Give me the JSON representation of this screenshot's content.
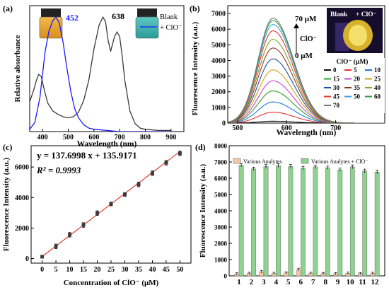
{
  "chart_data": [
    {
      "panel": "(a)",
      "type": "line",
      "xlabel": "Wavelength (nm)",
      "ylabel": "Relative absorbance",
      "xlim": [
        350,
        950
      ],
      "ylim": [
        0,
        1.1
      ],
      "x_ticks": [
        "400",
        "500",
        "600",
        "700",
        "800",
        "900"
      ],
      "peak_labels": [
        "452",
        "638"
      ],
      "series": [
        {
          "name": "Blank",
          "color": "#3a3a3a",
          "x": [
            350,
            365,
            375,
            385,
            395,
            405,
            420,
            440,
            460,
            480,
            500,
            520,
            540,
            560,
            580,
            600,
            620,
            635,
            645,
            655,
            665,
            680,
            690,
            700,
            710,
            720,
            740,
            760,
            780,
            800,
            850,
            900
          ],
          "y": [
            0.26,
            0.36,
            0.44,
            0.5,
            0.48,
            0.38,
            0.25,
            0.18,
            0.15,
            0.13,
            0.12,
            0.13,
            0.17,
            0.27,
            0.45,
            0.72,
            0.93,
            1.0,
            0.96,
            0.8,
            0.7,
            0.83,
            0.87,
            0.83,
            0.66,
            0.45,
            0.18,
            0.07,
            0.03,
            0.02,
            0.01,
            0.01
          ]
        },
        {
          "name": "+ ClO⁻",
          "color": "#1a1aff",
          "x": [
            350,
            370,
            390,
            410,
            425,
            440,
            452,
            465,
            480,
            495,
            510,
            525,
            540,
            560,
            580,
            600,
            650,
            700,
            800,
            900
          ],
          "y": [
            0.02,
            0.08,
            0.3,
            0.7,
            0.88,
            0.97,
            1.0,
            0.95,
            0.78,
            0.55,
            0.35,
            0.2,
            0.12,
            0.06,
            0.03,
            0.02,
            0.01,
            0.0,
            0.0,
            0.0
          ]
        }
      ],
      "legend_position": "top-right"
    },
    {
      "panel": "(b)",
      "type": "line",
      "xlabel": "Wavelength (nm)",
      "ylabel": "Fluorescence Intensity (a.u.)",
      "xlim": [
        480,
        800
      ],
      "ylim": [
        0,
        7500
      ],
      "x_ticks": [
        "500",
        "600",
        "700"
      ],
      "y_ticks": [
        "0",
        "1000",
        "2000",
        "3000",
        "4000",
        "5000",
        "6000",
        "7000"
      ],
      "peak_x": 572,
      "annotation_top": "70 μM",
      "annotation_mid": "ClO⁻",
      "annotation_bottom": "0 μM",
      "inset_labels": [
        "Blank",
        "+ ClO⁻"
      ],
      "legend_title": "ClO⁻ (μM)",
      "series": [
        {
          "name": "0",
          "color": "#111111",
          "peak": 120
        },
        {
          "name": "5",
          "color": "#e8312f",
          "peak": 700
        },
        {
          "name": "10",
          "color": "#1f77e4",
          "peak": 1350
        },
        {
          "name": "15",
          "color": "#2ca02c",
          "peak": 2050
        },
        {
          "name": "20",
          "color": "#cc44cc",
          "peak": 2700
        },
        {
          "name": "25",
          "color": "#d4a017",
          "peak": 3400
        },
        {
          "name": "30",
          "color": "#1f4fa0",
          "peak": 4100
        },
        {
          "name": "35",
          "color": "#8b3a2a",
          "peak": 4800
        },
        {
          "name": "40",
          "color": "#8aa020",
          "peak": 5350
        },
        {
          "name": "45",
          "color": "#e03a2a",
          "peak": 5900
        },
        {
          "name": "50",
          "color": "#3ea0e0",
          "peak": 6300
        },
        {
          "name": "60",
          "color": "#2e9e3e",
          "peak": 6550
        },
        {
          "name": "70",
          "color": "#777777",
          "peak": 6700
        }
      ],
      "legend_position": "right"
    },
    {
      "panel": "(c)",
      "type": "scatter",
      "xlabel": "Concentration of ClO⁻ (μM)",
      "ylabel": "Fluorescence Intensity (a.u.)",
      "xlim": [
        -4,
        54
      ],
      "ylim": [
        -300,
        7400
      ],
      "x_ticks": [
        "0",
        "5",
        "10",
        "15",
        "20",
        "25",
        "30",
        "35",
        "40",
        "45",
        "50"
      ],
      "y_ticks": [
        "0",
        "2000",
        "4000",
        "6000"
      ],
      "equation": "y = 137.6998 x + 135.9171",
      "r2_label": "R² = 0.9993",
      "x": [
        0,
        5,
        10,
        15,
        20,
        25,
        30,
        35,
        40,
        45,
        50
      ],
      "y": [
        120,
        800,
        1560,
        2200,
        2980,
        3580,
        4200,
        4860,
        5600,
        6280,
        6900
      ],
      "errors": [
        100,
        150,
        150,
        150,
        150,
        120,
        120,
        150,
        150,
        150,
        150
      ],
      "fit": {
        "slope": 137.6998,
        "intercept": 135.9171
      },
      "color": "#e33b2e"
    },
    {
      "panel": "(d)",
      "type": "bar",
      "ylabel": "Fluorescence Intensity (a.u.)",
      "ylim": [
        0,
        8000
      ],
      "y_ticks": [
        "0",
        "1000",
        "2000",
        "3000",
        "4000",
        "5000",
        "6000",
        "7000",
        "8000"
      ],
      "categories": [
        "1",
        "2",
        "3",
        "4",
        "5",
        "6",
        "7",
        "8",
        "9",
        "10",
        "11",
        "12"
      ],
      "series": [
        {
          "name": "Various Analytes",
          "color": "#f6c8a4",
          "values": [
            120,
            150,
            250,
            150,
            180,
            380,
            150,
            140,
            130,
            160,
            140,
            150
          ],
          "errors": [
            70,
            70,
            90,
            70,
            70,
            90,
            70,
            70,
            70,
            70,
            70,
            70
          ]
        },
        {
          "name": "Various Analytes + ClO⁻",
          "color": "#8fd18f",
          "values": [
            6800,
            6580,
            6720,
            6780,
            6720,
            6620,
            6700,
            6650,
            6520,
            6700,
            6440,
            6380
          ],
          "errors": [
            100,
            100,
            120,
            110,
            120,
            110,
            110,
            100,
            100,
            120,
            120,
            110
          ]
        }
      ],
      "legend_position": "top"
    }
  ]
}
